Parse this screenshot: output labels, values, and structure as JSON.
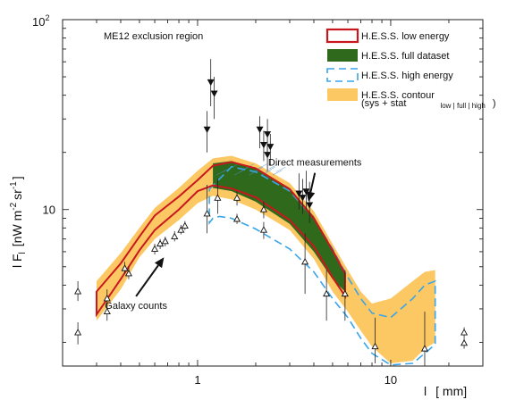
{
  "chart_data": {
    "type": "line",
    "xscale": "log",
    "yscale": "log",
    "xlim": [
      0.2,
      30
    ],
    "ylim": [
      1.5,
      100
    ],
    "xlabel_main": "l",
    "xlabel_unit": "[ mm]",
    "ylabel": "l F_l [nW m^-2 sr^-1]",
    "ylabel_parts": {
      "lead": "l F",
      "sub": "l",
      "open": "[nW m",
      "sup1": "-2",
      "mid": "sr",
      "sup2": "-1",
      "close": "]"
    },
    "x_ticks": [
      {
        "v": 1,
        "label": "1"
      },
      {
        "v": 10,
        "label": "10"
      }
    ],
    "y_ticks": [
      {
        "v": 10,
        "label": "10"
      }
    ],
    "y_top_label": {
      "base": "10",
      "exp": "2"
    },
    "region_label": "ME12 exclusion region",
    "legend": [
      {
        "label": "H.E.S.S. low energy",
        "kind": "outline",
        "color": "#c8181e"
      },
      {
        "label": "H.E.S.S. full dataset",
        "kind": "fill",
        "color": "#2f6a1c"
      },
      {
        "label": "H.E.S.S. high energy",
        "kind": "dashed",
        "color": "#3aa5e8"
      },
      {
        "label": "H.E.S.S. contour",
        "kind": "fill",
        "color": "#fcc864"
      }
    ],
    "legend_extra": {
      "text": "(sys + stat",
      "sub": "low | full | high",
      "close": ")"
    },
    "annotations": [
      {
        "text": "Direct measurements",
        "tx": 4.05,
        "ty": 17.0,
        "ax": 3.75,
        "ay": 11.0
      },
      {
        "text": "Galaxy counts",
        "tx": 0.48,
        "ty": 3.0,
        "ax": 0.67,
        "ay": 5.6
      }
    ],
    "series": [
      {
        "role": "contour",
        "color": "#fcc864",
        "upper": [
          [
            0.3,
            4.2
          ],
          [
            0.4,
            5.9
          ],
          [
            0.5,
            8.0
          ],
          [
            0.6,
            10.2
          ],
          [
            0.8,
            13.0
          ],
          [
            1.0,
            16.0
          ],
          [
            1.2,
            18.6
          ],
          [
            1.5,
            19.2
          ],
          [
            2.0,
            17.5
          ],
          [
            3.0,
            13.8
          ],
          [
            4.0,
            9.8
          ],
          [
            5.0,
            6.6
          ],
          [
            6.0,
            4.8
          ],
          [
            7.0,
            3.7
          ],
          [
            8.0,
            3.2
          ],
          [
            10.0,
            3.4
          ],
          [
            13.0,
            4.2
          ],
          [
            15.0,
            4.7
          ],
          [
            17.0,
            4.8
          ]
        ],
        "lower": [
          [
            17.0,
            2.0
          ],
          [
            15.0,
            1.85
          ],
          [
            13.0,
            1.6
          ],
          [
            10.0,
            1.55
          ],
          [
            8.0,
            1.9
          ],
          [
            7.0,
            2.3
          ],
          [
            6.0,
            2.9
          ],
          [
            5.0,
            3.7
          ],
          [
            4.0,
            5.5
          ],
          [
            3.0,
            7.8
          ],
          [
            2.0,
            10.0
          ],
          [
            1.5,
            11.3
          ],
          [
            1.2,
            11.8
          ],
          [
            1.0,
            10.8
          ],
          [
            0.8,
            8.8
          ],
          [
            0.6,
            7.0
          ],
          [
            0.5,
            5.6
          ],
          [
            0.4,
            3.8
          ],
          [
            0.3,
            2.6
          ]
        ]
      },
      {
        "role": "full",
        "color": "#2f6a1c",
        "upper": [
          [
            1.2,
            17.5
          ],
          [
            1.5,
            18.0
          ],
          [
            2.0,
            16.5
          ],
          [
            3.0,
            13.0
          ],
          [
            4.0,
            9.2
          ],
          [
            5.0,
            6.2
          ],
          [
            5.8,
            4.6
          ]
        ],
        "lower": [
          [
            5.8,
            3.7
          ],
          [
            5.0,
            4.3
          ],
          [
            4.0,
            6.0
          ],
          [
            3.0,
            8.4
          ],
          [
            2.0,
            11.0
          ],
          [
            1.5,
            12.5
          ],
          [
            1.2,
            13.0
          ]
        ]
      },
      {
        "role": "low",
        "color": "#c8181e",
        "upper": [
          [
            0.3,
            3.7
          ],
          [
            0.4,
            5.2
          ],
          [
            0.5,
            7.2
          ],
          [
            0.6,
            9.3
          ],
          [
            0.8,
            11.7
          ],
          [
            1.0,
            14.3
          ],
          [
            1.2,
            17.0
          ],
          [
            1.5,
            17.8
          ],
          [
            2.0,
            16.5
          ],
          [
            3.0,
            12.8
          ],
          [
            4.0,
            9.0
          ],
          [
            5.0,
            6.1
          ],
          [
            5.8,
            4.6
          ]
        ],
        "lower": [
          [
            5.8,
            3.5
          ],
          [
            5.0,
            4.4
          ],
          [
            4.0,
            6.4
          ],
          [
            3.0,
            8.8
          ],
          [
            2.0,
            11.6
          ],
          [
            1.5,
            12.9
          ],
          [
            1.2,
            13.4
          ],
          [
            1.0,
            12.5
          ],
          [
            0.8,
            10.0
          ],
          [
            0.6,
            7.8
          ],
          [
            0.5,
            6.1
          ],
          [
            0.4,
            4.3
          ],
          [
            0.3,
            2.8
          ]
        ]
      },
      {
        "role": "high",
        "color": "#3aa5e8",
        "upper": [
          [
            1.15,
            12.8
          ],
          [
            1.5,
            16.8
          ],
          [
            2.0,
            15.8
          ],
          [
            3.0,
            12.5
          ],
          [
            4.0,
            9.0
          ],
          [
            5.0,
            6.2
          ],
          [
            6.0,
            4.4
          ],
          [
            7.0,
            3.4
          ],
          [
            8.0,
            2.85
          ],
          [
            10.0,
            2.7
          ],
          [
            13.0,
            3.4
          ],
          [
            15.0,
            4.0
          ],
          [
            17.0,
            4.2
          ]
        ],
        "lower": [
          [
            17.0,
            1.95
          ],
          [
            15.0,
            1.75
          ],
          [
            13.0,
            1.55
          ],
          [
            10.0,
            1.52
          ],
          [
            8.0,
            1.75
          ],
          [
            7.0,
            2.1
          ],
          [
            6.0,
            2.7
          ],
          [
            5.0,
            3.4
          ],
          [
            4.0,
            4.7
          ],
          [
            3.0,
            6.2
          ],
          [
            2.0,
            7.9
          ],
          [
            1.5,
            9.0
          ],
          [
            1.3,
            9.2
          ],
          [
            1.2,
            9.0
          ],
          [
            1.15,
            8.5
          ]
        ]
      }
    ],
    "points_up": [
      {
        "x": 0.24,
        "y": 2.25,
        "lo": 1.95,
        "hi": 2.55
      },
      {
        "x": 0.24,
        "y": 3.7,
        "lo": 3.3,
        "hi": 4.2
      },
      {
        "x": 0.34,
        "y": 2.9,
        "lo": 2.6,
        "hi": 3.2
      },
      {
        "x": 0.34,
        "y": 3.4,
        "lo": 3.0,
        "hi": 3.8
      },
      {
        "x": 0.42,
        "y": 4.9,
        "lo": 4.6,
        "hi": 5.3
      },
      {
        "x": 0.44,
        "y": 4.6,
        "lo": 4.3,
        "hi": 5.0
      },
      {
        "x": 0.6,
        "y": 6.2,
        "lo": 5.8,
        "hi": 6.6
      },
      {
        "x": 0.64,
        "y": 6.6,
        "lo": 6.2,
        "hi": 7.0
      },
      {
        "x": 0.68,
        "y": 6.8,
        "lo": 6.4,
        "hi": 7.2
      },
      {
        "x": 0.76,
        "y": 7.2,
        "lo": 6.8,
        "hi": 7.7
      },
      {
        "x": 0.82,
        "y": 7.8,
        "lo": 7.4,
        "hi": 8.3
      },
      {
        "x": 0.86,
        "y": 8.2,
        "lo": 7.8,
        "hi": 8.7
      },
      {
        "x": 1.12,
        "y": 9.5,
        "lo": 7.5,
        "hi": 13.5
      },
      {
        "x": 1.27,
        "y": 11.5,
        "lo": 9.5,
        "hi": 14.5
      },
      {
        "x": 1.6,
        "y": 8.9,
        "lo": 8.4,
        "hi": 9.5
      },
      {
        "x": 1.6,
        "y": 11.5,
        "lo": 10.5,
        "hi": 12.5
      },
      {
        "x": 2.2,
        "y": 7.8,
        "lo": 7.0,
        "hi": 8.6
      },
      {
        "x": 2.2,
        "y": 10.0,
        "lo": 9.0,
        "hi": 11.0
      },
      {
        "x": 3.6,
        "y": 5.3,
        "lo": 3.6,
        "hi": 7.5
      },
      {
        "x": 4.65,
        "y": 3.6,
        "lo": 2.6,
        "hi": 4.8
      },
      {
        "x": 5.8,
        "y": 3.6,
        "lo": 2.6,
        "hi": 4.8
      },
      {
        "x": 8.3,
        "y": 1.9,
        "lo": 1.55,
        "hi": 2.7
      },
      {
        "x": 15.0,
        "y": 1.85,
        "lo": 1.5,
        "hi": 2.9
      },
      {
        "x": 24.0,
        "y": 2.25,
        "lo": 2.1,
        "hi": 2.4
      },
      {
        "x": 24.0,
        "y": 1.98,
        "lo": 1.85,
        "hi": 2.1
      }
    ],
    "points_down": [
      {
        "x": 1.12,
        "y": 26.5,
        "lo": 20.0,
        "hi": 33.0
      },
      {
        "x": 1.17,
        "y": 47.0,
        "lo": 35.0,
        "hi": 62.0
      },
      {
        "x": 1.22,
        "y": 41.0,
        "lo": 30.0,
        "hi": 50.0
      },
      {
        "x": 2.1,
        "y": 26.5,
        "lo": 21.0,
        "hi": 31.0
      },
      {
        "x": 2.2,
        "y": 22.0,
        "lo": 18.0,
        "hi": 26.0
      },
      {
        "x": 2.3,
        "y": 25.0,
        "lo": 20.0,
        "hi": 30.0
      },
      {
        "x": 2.3,
        "y": 19.5,
        "lo": 16.0,
        "hi": 23.0
      },
      {
        "x": 2.38,
        "y": 21.5,
        "lo": 17.0,
        "hi": 25.0
      },
      {
        "x": 3.35,
        "y": 12.2,
        "lo": 10.0,
        "hi": 15.5
      },
      {
        "x": 3.5,
        "y": 11.6,
        "lo": 9.5,
        "hi": 14.5
      },
      {
        "x": 3.65,
        "y": 12.5,
        "lo": 10.0,
        "hi": 16.0
      },
      {
        "x": 3.8,
        "y": 10.6,
        "lo": 8.5,
        "hi": 14.0
      }
    ]
  }
}
